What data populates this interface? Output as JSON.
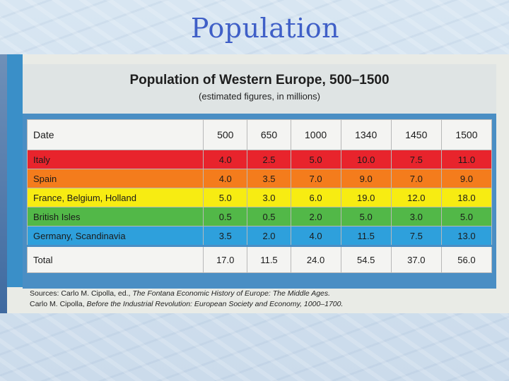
{
  "slide": {
    "title": "Population"
  },
  "table": {
    "title": "Population of Western Europe, 500–1500",
    "subtitle": "(estimated figures, in millions)",
    "header": [
      "Date",
      "500",
      "650",
      "1000",
      "1340",
      "1450",
      "1500"
    ],
    "rows": [
      {
        "region": "Italy",
        "values": [
          "4.0",
          "2.5",
          "5.0",
          "10.0",
          "7.5",
          "11.0"
        ],
        "color": "#e8242c"
      },
      {
        "region": "Spain",
        "values": [
          "4.0",
          "3.5",
          "7.0",
          "9.0",
          "7.0",
          "9.0"
        ],
        "color": "#f47c1c"
      },
      {
        "region": "France, Belgium, Holland",
        "values": [
          "5.0",
          "3.0",
          "6.0",
          "19.0",
          "12.0",
          "18.0"
        ],
        "color": "#f7ec12"
      },
      {
        "region": "British Isles",
        "values": [
          "0.5",
          "0.5",
          "2.0",
          "5.0",
          "3.0",
          "5.0"
        ],
        "color": "#52b848"
      },
      {
        "region": "Germany, Scandinavia",
        "values": [
          "3.5",
          "2.0",
          "4.0",
          "11.5",
          "7.5",
          "13.0"
        ],
        "color": "#2ea0dc"
      }
    ],
    "total": {
      "label": "Total",
      "values": [
        "17.0",
        "11.5",
        "24.0",
        "54.5",
        "37.0",
        "56.0"
      ]
    }
  },
  "sources": {
    "line1_prefix": "Sources: Carlo M. Cipolla, ed., ",
    "line1_title": "The Fontana Economic History of Europe: The Middle Ages.",
    "line2_prefix": "Carlo M. Cipolla, ",
    "line2_title": "Before the Industrial Revolution: European Society and Economy, 1000–1700."
  }
}
